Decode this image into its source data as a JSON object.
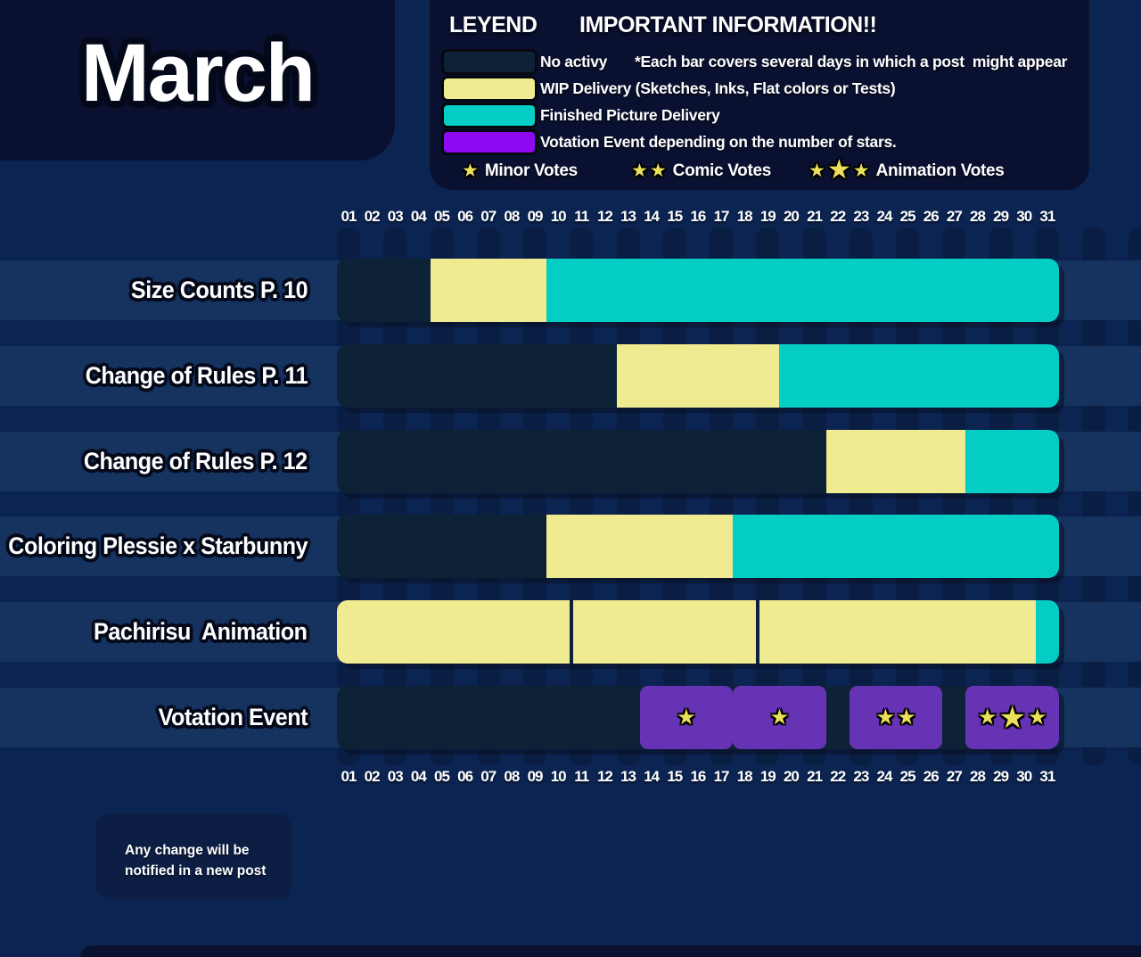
{
  "title": "March",
  "legend": {
    "heading": "LEYEND",
    "info_heading": "IMPORTANT INFORMATION!!",
    "items": [
      {
        "key": "none",
        "label": "No activy",
        "color": "#0d2236",
        "note": "*Each bar covers several days in which a post  might appear"
      },
      {
        "key": "wip",
        "label": "WIP Delivery (Sketches, Inks, Flat colors or Tests)",
        "color": "#f0ea90"
      },
      {
        "key": "finished",
        "label": "Finished Picture Delivery",
        "color": "#03cdc4"
      },
      {
        "key": "vote",
        "label": "Votation Event depending on the number of stars.",
        "color": "#8d09f2"
      }
    ],
    "vote_types": [
      {
        "stars": 1,
        "label": "Minor Votes"
      },
      {
        "stars": 2,
        "label": "Comic Votes"
      },
      {
        "stars": 3,
        "label": "Animation Votes"
      }
    ]
  },
  "chart_data": {
    "type": "gantt",
    "month": "March",
    "days": [
      "01",
      "02",
      "03",
      "04",
      "05",
      "06",
      "07",
      "08",
      "09",
      "10",
      "11",
      "12",
      "13",
      "14",
      "15",
      "16",
      "17",
      "18",
      "19",
      "20",
      "21",
      "22",
      "23",
      "24",
      "25",
      "26",
      "27",
      "28",
      "29",
      "30",
      "31"
    ],
    "rows": [
      {
        "label": "Size Counts P. 10",
        "segments": [
          {
            "type": "none",
            "from": 1,
            "to": 4
          },
          {
            "type": "wip",
            "from": 5,
            "to": 9
          },
          {
            "type": "finished",
            "from": 10,
            "to": 31
          }
        ]
      },
      {
        "label": "Change of Rules P. 11",
        "segments": [
          {
            "type": "none",
            "from": 1,
            "to": 12
          },
          {
            "type": "wip",
            "from": 13,
            "to": 19
          },
          {
            "type": "finished",
            "from": 20,
            "to": 31
          }
        ]
      },
      {
        "label": "Change of Rules P. 12",
        "segments": [
          {
            "type": "none",
            "from": 1,
            "to": 21
          },
          {
            "type": "wip",
            "from": 22,
            "to": 27
          },
          {
            "type": "finished",
            "from": 28,
            "to": 31
          }
        ]
      },
      {
        "label": "Coloring Plessie x Starbunny",
        "segments": [
          {
            "type": "none",
            "from": 1,
            "to": 9
          },
          {
            "type": "wip",
            "from": 10,
            "to": 17
          },
          {
            "type": "finished",
            "from": 18,
            "to": 31
          }
        ]
      },
      {
        "label": "Pachirisu  Animation",
        "segments": [
          {
            "type": "wip",
            "from": 1,
            "to": 10
          },
          {
            "type": "wip",
            "from": 11,
            "to": 18,
            "divider": true
          },
          {
            "type": "wip",
            "from": 19,
            "to": 30,
            "divider": true
          },
          {
            "type": "finished",
            "from": 31,
            "to": 31
          }
        ]
      },
      {
        "label": "Votation Event",
        "segments": [
          {
            "type": "none",
            "from": 1,
            "to": 13
          },
          {
            "type": "vote",
            "from": 14,
            "to": 17,
            "stars": 1
          },
          {
            "type": "vote",
            "from": 18,
            "to": 21,
            "stars": 1
          },
          {
            "type": "none",
            "from": 22,
            "to": 22
          },
          {
            "type": "vote",
            "from": 23,
            "to": 26,
            "stars": 2
          },
          {
            "type": "none",
            "from": 27,
            "to": 27
          },
          {
            "type": "vote",
            "from": 28,
            "to": 31,
            "stars": 3
          }
        ]
      }
    ]
  },
  "note_lines": [
    "Any change will be",
    "notified in a new post"
  ],
  "colors": {
    "background": "#0c2451",
    "panel": "#0a1130",
    "band": "#16325f",
    "stripe": "#0a1e44",
    "none": "#0d2236",
    "wip": "#f0ea90",
    "finished": "#03cdc4",
    "vote_bar": "#6733b5",
    "vote_legend": "#8d09f2",
    "star": "#ece05a"
  }
}
